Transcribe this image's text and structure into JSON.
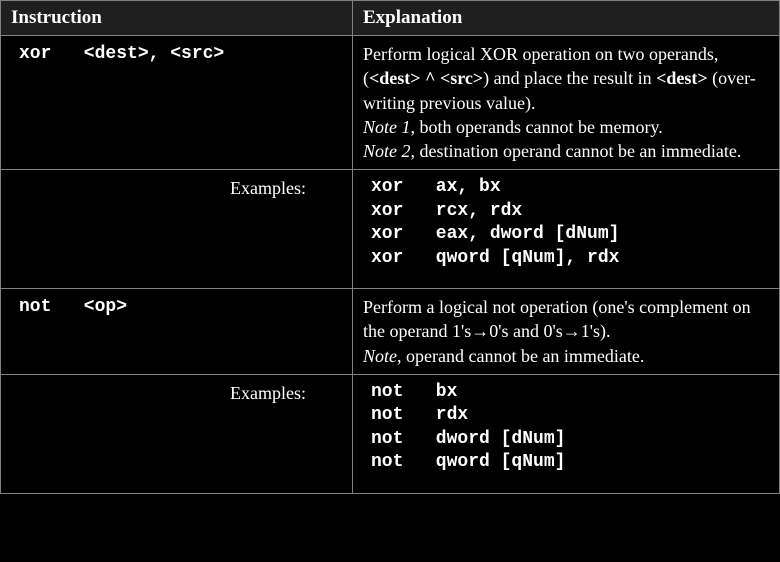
{
  "table": {
    "header_bg": "#1f1f1f",
    "border_color": "#808080",
    "text_color": "#ffffff",
    "bg_color": "#000000",
    "headers": {
      "instruction": "Instruction",
      "explanation": "Explanation"
    },
    "rows": [
      {
        "instr": "xor   <dest>, <src>",
        "expl_html": "Perform logical XOR operation on two operands, (<b>&lt;dest&gt; ^ &lt;src&gt;</b>) and place the result in <b>&lt;dest&gt;</b> (over-writing previous value).<br><span class=\"note\">Note 1</span>, both operands cannot be memory.<br><span class=\"note\">Note 2</span>, destination operand cannot be an immediate."
      },
      {
        "exlabel": "Examples:",
        "code": "xor   ax, bx\nxor   rcx, rdx\nxor   eax, dword [dNum]\nxor   qword [qNum], rdx"
      },
      {
        "instr": "not   <op>",
        "expl_html": "Perform a logical not operation (one's complement on the operand 1's→0's and 0's→1's).<br><span class=\"note\">Note</span>, operand cannot be an immediate."
      },
      {
        "exlabel": "Examples:",
        "code": "not   bx\nnot   rdx\nnot   dword [dNum]\nnot   qword [qNum]"
      }
    ]
  }
}
